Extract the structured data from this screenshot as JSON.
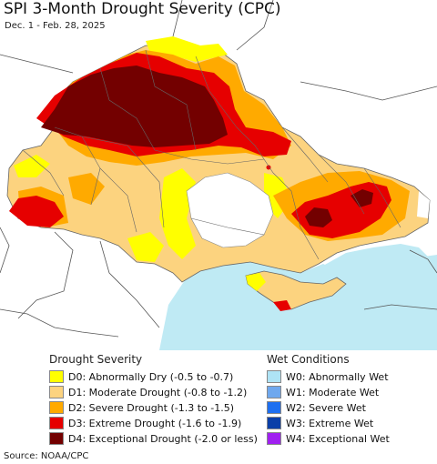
{
  "title": "SPI 3-Month Drought Severity (CPC)",
  "date_range": "Dec. 1 - Feb. 28, 2025",
  "source": "Source: NOAA/CPC",
  "colors": {
    "sea": "#bfeaf4",
    "land_outside": "#ffffff",
    "border": "#555555",
    "D0": "#ffff00",
    "D1": "#fcd37f",
    "D2": "#ffaa00",
    "D3": "#e60000",
    "D4": "#730000"
  },
  "legend": {
    "drought_heading": "Drought Severity",
    "wet_heading": "Wet Conditions",
    "drought_items": [
      {
        "label": "D0: Abnormally Dry (-0.5 to -0.7)",
        "color": "#ffff00"
      },
      {
        "label": "D1: Moderate Drought (-0.8 to -1.2)",
        "color": "#fcd37f"
      },
      {
        "label": "D2: Severe Drought (-1.3 to -1.5)",
        "color": "#ffaa00"
      },
      {
        "label": "D3: Extreme Drought (-1.6 to -1.9)",
        "color": "#e60000"
      },
      {
        "label": "D4: Exceptional Drought (-2.0 or less)",
        "color": "#730000"
      }
    ],
    "wet_items": [
      {
        "label": "W0: Abnormally Wet",
        "color": "#aee3f5"
      },
      {
        "label": "W1: Moderate Wet",
        "color": "#6fa8ee"
      },
      {
        "label": "W2: Severe Wet",
        "color": "#1e6ff0"
      },
      {
        "label": "W3: Extreme Wet",
        "color": "#0a3fa8"
      },
      {
        "label": "W4: Exceptional Wet",
        "color": "#a020f0"
      }
    ]
  }
}
